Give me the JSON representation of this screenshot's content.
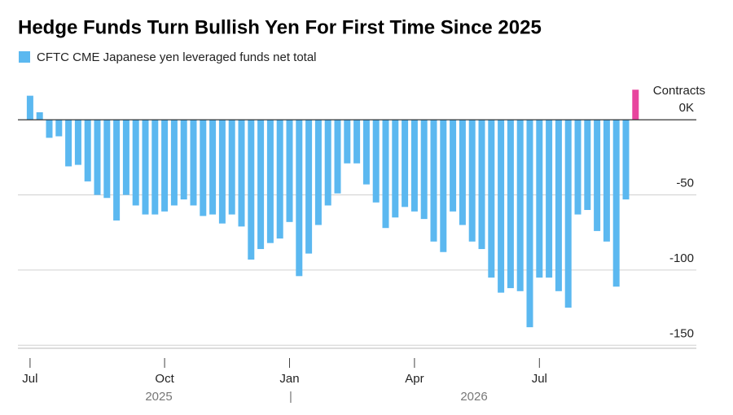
{
  "chart_data": {
    "type": "bar",
    "title": "Hedge Funds Turn Bullish Yen For First Time Since 2025",
    "series": [
      {
        "name": "CFTC CME Japanese yen leveraged funds net total",
        "color": "#5bb8f0",
        "values": [
          16,
          5,
          -12,
          -11,
          -31,
          -30,
          -41,
          -50,
          -52,
          -67,
          -50,
          -57,
          -63,
          -63,
          -61,
          -57,
          -53,
          -57,
          -64,
          -63,
          -69,
          -63,
          -71,
          -93,
          -86,
          -82,
          -79,
          -68,
          -104,
          -89,
          -70,
          -57,
          -49,
          -29,
          -29,
          -43,
          -55,
          -72,
          -65,
          -58,
          -61,
          -66,
          -81,
          -88,
          -61,
          -70,
          -81,
          -86,
          -105,
          -115,
          -112,
          -114,
          -138,
          -105,
          -105,
          -114,
          -125,
          -63,
          -60,
          -74,
          -81,
          -111,
          -53,
          20
        ]
      }
    ],
    "highlight": {
      "index": 63,
      "color": "#e8449e"
    },
    "categories": [
      "Jul",
      null,
      null,
      null,
      null,
      null,
      null,
      null,
      null,
      null,
      null,
      null,
      null,
      null,
      "Oct",
      null,
      null,
      null,
      null,
      null,
      null,
      null,
      null,
      null,
      null,
      null,
      null,
      "Jan",
      null,
      null,
      null,
      null,
      null,
      null,
      null,
      null,
      null,
      null,
      null,
      null,
      "Apr",
      null,
      null,
      null,
      null,
      null,
      null,
      null,
      null,
      null,
      null,
      null,
      null,
      "Jul",
      null,
      null,
      null,
      null,
      null,
      null,
      null,
      null,
      null,
      null
    ],
    "x_group_labels": [
      "2025",
      "|",
      "2026"
    ],
    "y_axis_label": "Contracts",
    "ylim": [
      -152,
      25
    ],
    "yticks": [
      {
        "value": 0,
        "label": "0K"
      },
      -50,
      -100,
      -150
    ],
    "grid": true
  }
}
